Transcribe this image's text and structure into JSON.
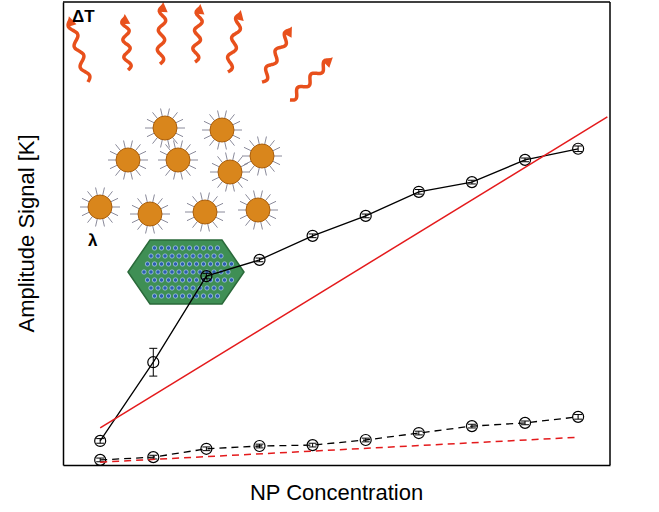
{
  "chart_data": {
    "type": "line",
    "xlabel": "NP Concentration",
    "ylabel": "Amplitude Signal [K]",
    "annotations": [
      "ΔT",
      "λ"
    ],
    "tick_labels": false,
    "grid": false,
    "x": [
      1,
      2,
      3,
      4,
      5,
      6,
      7,
      8,
      9,
      10
    ],
    "xlim": [
      0.3,
      10.6
    ],
    "ylim": [
      0,
      100
    ],
    "series": [
      {
        "color": "#000000",
        "line_style": "solid",
        "marker": "circle",
        "values": [
          5.2,
          22.2,
          40.8,
          44.3,
          49.5,
          53.8,
          59.0,
          61.1,
          65.9,
          68.3
        ],
        "errors": [
          0.5,
          3.0,
          0.6,
          0.4,
          0.4,
          0.4,
          0.5,
          0.4,
          0.4,
          0.6
        ]
      },
      {
        "color": "#000000",
        "line_style": "dashed",
        "marker": "circle",
        "values": [
          1.1,
          1.7,
          3.5,
          4.1,
          4.3,
          5.4,
          6.9,
          8.4,
          9.1,
          10.4
        ],
        "errors": [
          0.4,
          0.4,
          0.4,
          0.4,
          0.4,
          0.4,
          0.4,
          0.4,
          0.4,
          0.5
        ]
      },
      {
        "type": "line",
        "color": "#e41a1c",
        "line_style": "solid",
        "marker": "none",
        "x": [
          1,
          10.55
        ],
        "values": [
          8.0,
          75.2
        ]
      },
      {
        "type": "line",
        "color": "#e41a1c",
        "line_style": "dashed",
        "marker": "none",
        "x": [
          1,
          10.0
        ],
        "values": [
          0.6,
          6.0
        ]
      }
    ]
  }
}
